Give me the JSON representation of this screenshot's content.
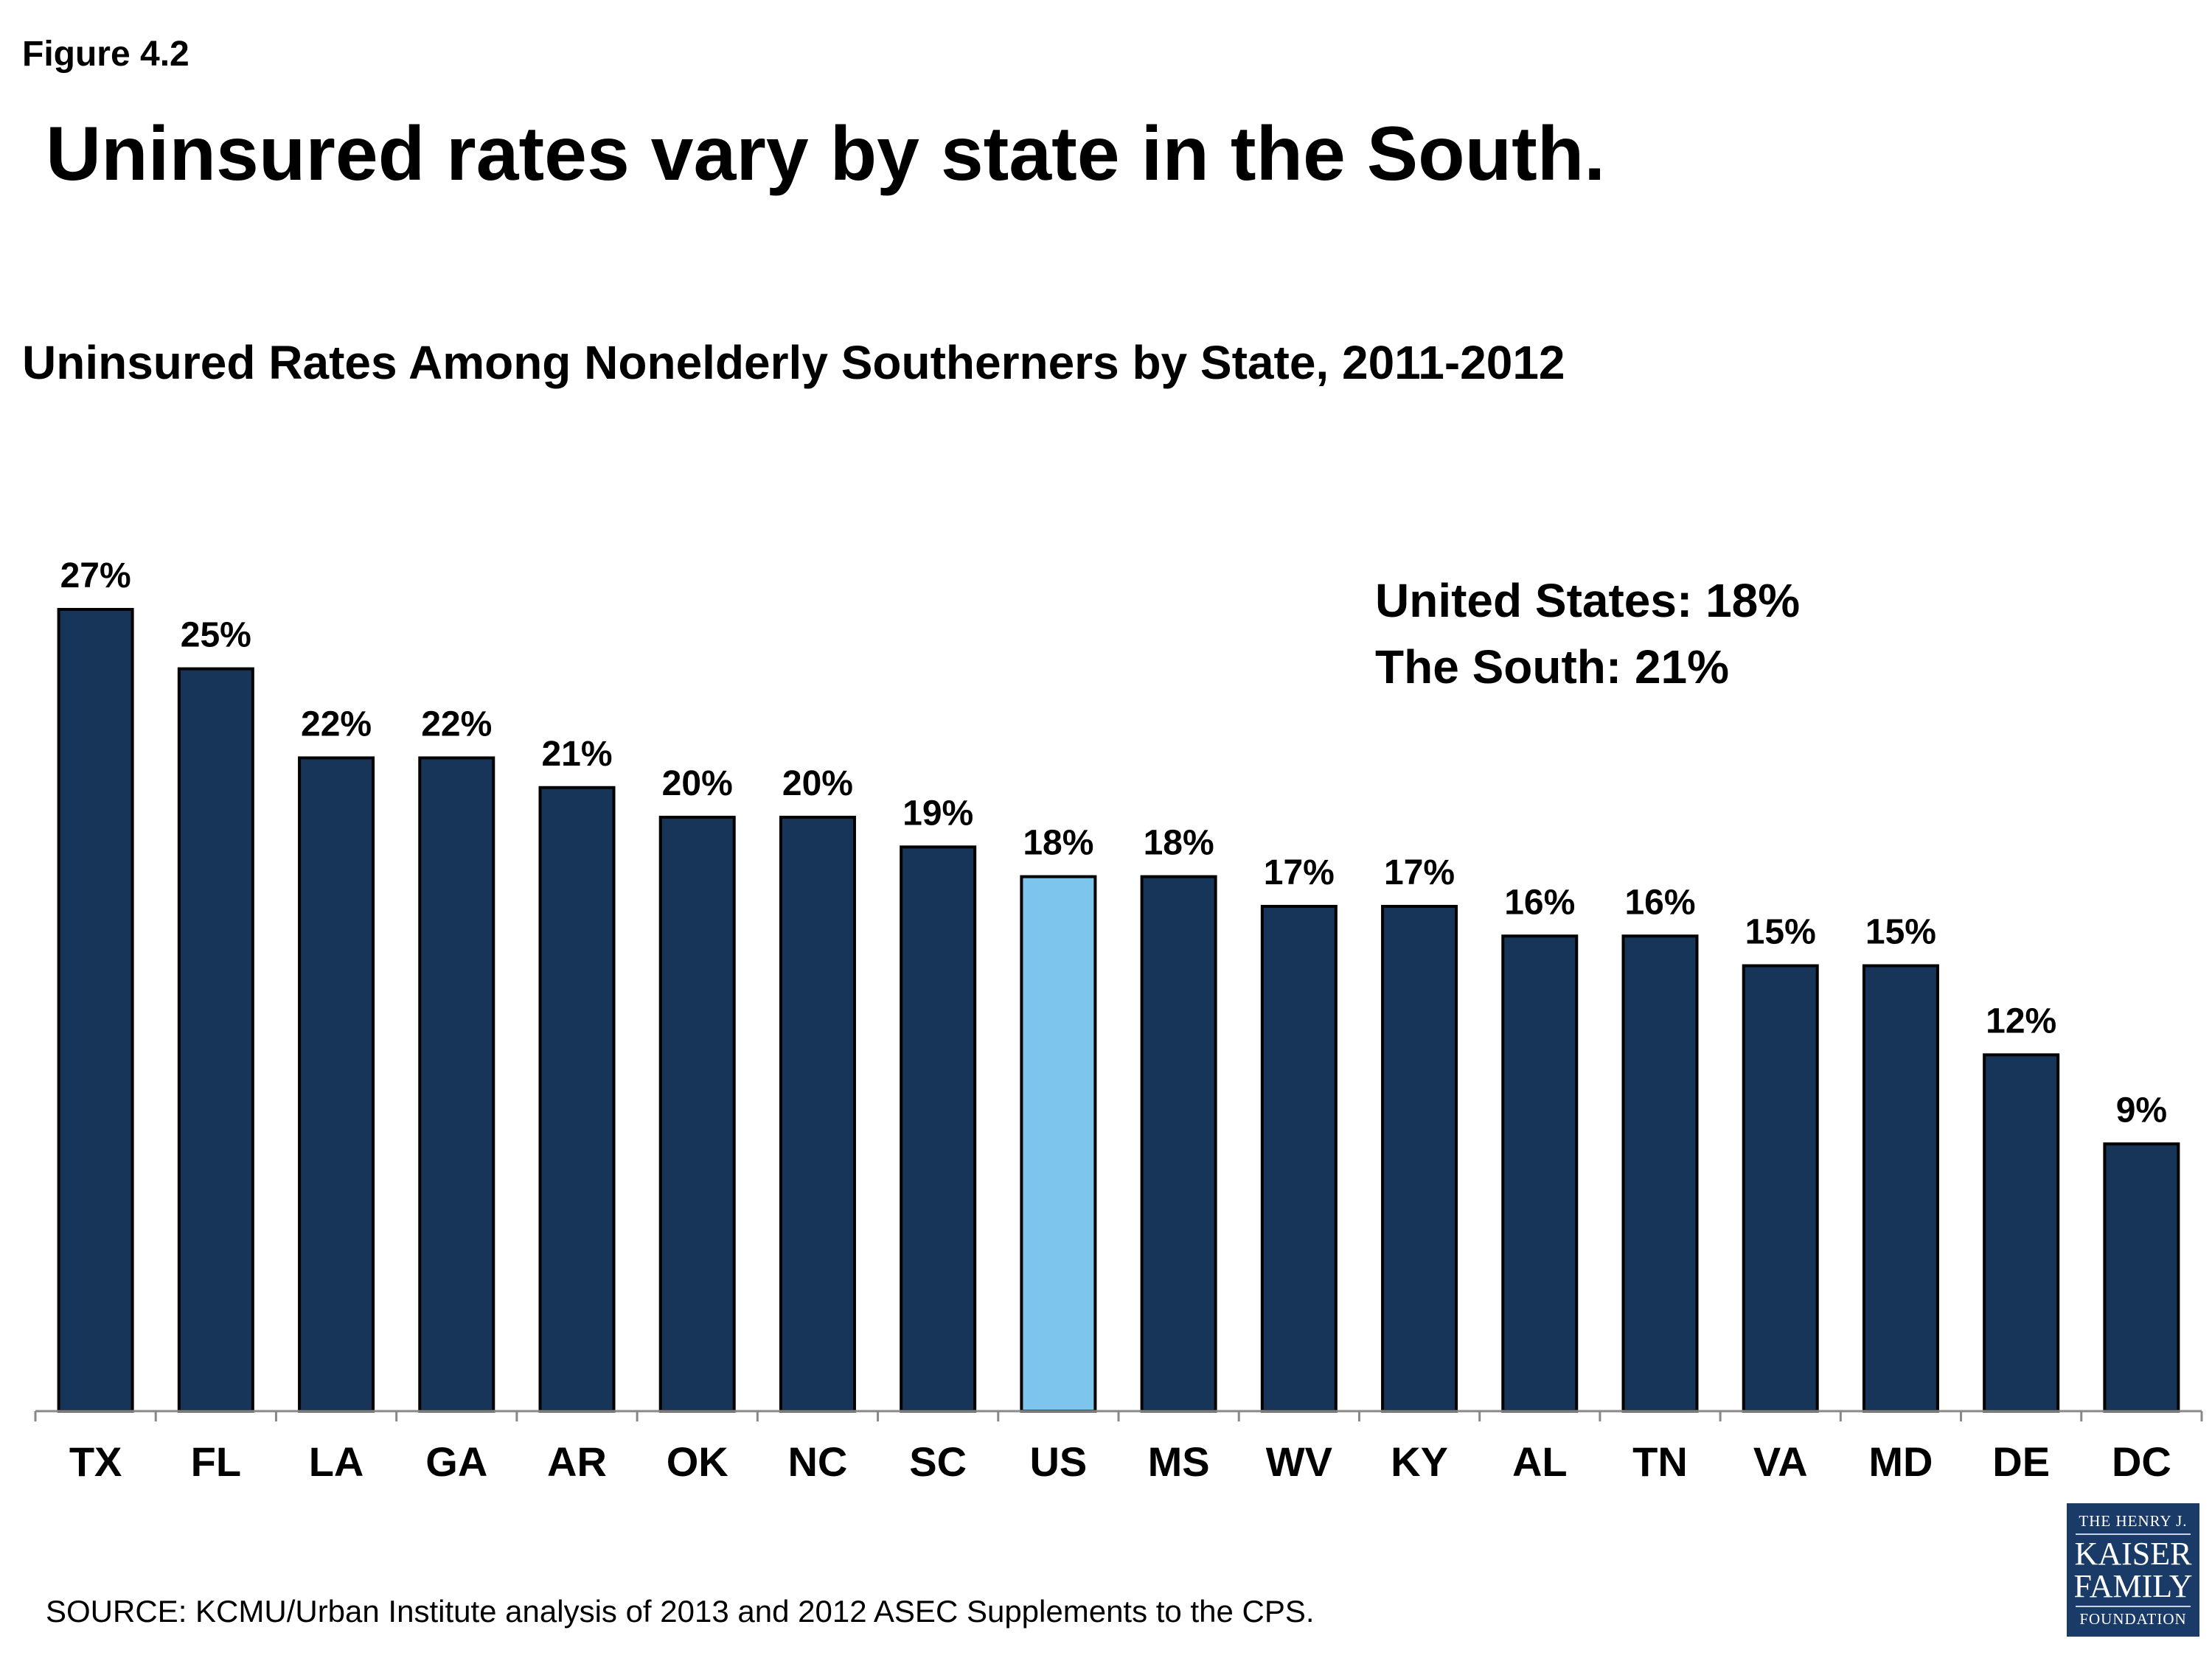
{
  "figure_label": "Figure 4.2",
  "headline": "Uninsured rates vary by state in the South.",
  "callouts": [
    "United States: 18%",
    "The South: 21%"
  ],
  "source": "SOURCE: KCMU/Urban Institute analysis of 2013 and 2012 ASEC Supplements to the CPS.",
  "logo": {
    "line1": "THE HENRY J.",
    "line2": "KAISER",
    "line3": "FAMILY",
    "line4": "FOUNDATION"
  },
  "colors": {
    "bar": "#173459",
    "highlight": "#7dc5ec",
    "outline": "#000000"
  },
  "chart_data": {
    "type": "bar",
    "title": "Uninsured Rates Among Nonelderly Southerners by State, 2011-2012",
    "xlabel": "",
    "ylabel": "",
    "ylim": [
      0,
      27
    ],
    "grid": false,
    "categories": [
      "TX",
      "FL",
      "LA",
      "GA",
      "AR",
      "OK",
      "NC",
      "SC",
      "US",
      "MS",
      "WV",
      "KY",
      "AL",
      "TN",
      "VA",
      "MD",
      "DE",
      "DC"
    ],
    "values": [
      27,
      25,
      22,
      22,
      21,
      20,
      20,
      19,
      18,
      18,
      17,
      17,
      16,
      16,
      15,
      15,
      12,
      9
    ],
    "data_labels": [
      "27%",
      "25%",
      "22%",
      "22%",
      "21%",
      "20%",
      "20%",
      "19%",
      "18%",
      "18%",
      "17%",
      "17%",
      "16%",
      "16%",
      "15%",
      "15%",
      "12%",
      "9%"
    ],
    "highlight_category": "US"
  }
}
